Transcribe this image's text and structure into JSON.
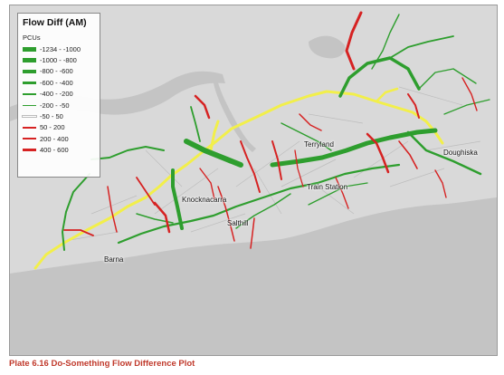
{
  "map": {
    "title": "Flow Diff (AM)",
    "legend": {
      "unit": "PCUs",
      "items": [
        {
          "label": "-1234 - -1000",
          "color": "#2e9e2e",
          "weight": 5
        },
        {
          "label": "-1000 - -800",
          "color": "#2e9e2e",
          "weight": 4.2
        },
        {
          "label": "-800 - -600",
          "color": "#2e9e2e",
          "weight": 3.4
        },
        {
          "label": "-600 - -400",
          "color": "#2e9e2e",
          "weight": 2.6
        },
        {
          "label": "-400 - -200",
          "color": "#2e9e2e",
          "weight": 1.9
        },
        {
          "label": "-200 - -50",
          "color": "#2e9e2e",
          "weight": 1.2
        },
        {
          "label": "-50 - 50",
          "color": "#ffffff",
          "weight": 0.6
        },
        {
          "label": "50 - 200",
          "color": "#d62222",
          "weight": 1.2
        },
        {
          "label": "200 - 400",
          "color": "#d62222",
          "weight": 1.9
        },
        {
          "label": "400 - 600",
          "color": "#d62222",
          "weight": 3.4
        }
      ]
    },
    "places": {
      "terryland": "Terryland",
      "doughiska": "Doughiska",
      "train_station": "Train Station",
      "knocknacarra": "Knocknacarra",
      "salthill": "Salthill",
      "barna": "Barna"
    },
    "colors": {
      "land": "#d9d9d9",
      "water": "#c4c4c4",
      "increase": "#d62222",
      "decrease": "#2e9e2e",
      "new_link": "#f2ef4a"
    }
  },
  "caption": "Plate 6.16 Do-Something Flow Difference Plot"
}
